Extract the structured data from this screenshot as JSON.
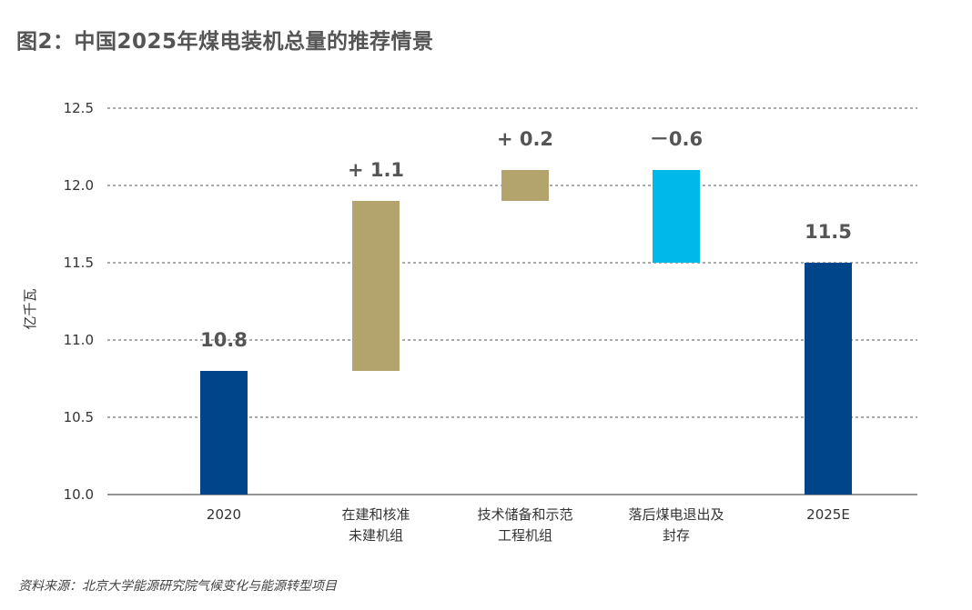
{
  "title": "图2：中国2025年煤电装机总量的推荐情景",
  "source": "资料来源：北京大学能源研究院气候变化与能源转型项目",
  "chart_data": {
    "type": "waterfall",
    "title": "图2：中国2025年煤电装机总量的推荐情景",
    "ylabel": "亿千瓦",
    "ylim": [
      10.0,
      12.5
    ],
    "yticks": [
      10.0,
      10.5,
      11.0,
      11.5,
      12.0,
      12.5
    ],
    "ytick_labels": [
      "10.0",
      "10.5",
      "11.0",
      "11.5",
      "12.0",
      "12.5"
    ],
    "grid": true,
    "categories": [
      [
        "2020"
      ],
      [
        "在建和核准",
        "未建机组"
      ],
      [
        "技术储备和示范",
        "工程机组"
      ],
      [
        "落后煤电退出及",
        "封存"
      ],
      [
        "2025E"
      ]
    ],
    "bars": [
      {
        "kind": "total",
        "start": 10.0,
        "end": 10.8,
        "label": "10.8",
        "color": "#00458a"
      },
      {
        "kind": "increase",
        "start": 10.8,
        "end": 11.9,
        "label": "+ 1.1",
        "color": "#b3a46e"
      },
      {
        "kind": "increase",
        "start": 11.9,
        "end": 12.1,
        "label": "+ 0.2",
        "color": "#b3a46e"
      },
      {
        "kind": "decrease",
        "start": 12.1,
        "end": 11.5,
        "label": "－0.6",
        "color": "#00b8ea"
      },
      {
        "kind": "total",
        "start": 10.0,
        "end": 11.5,
        "label": "11.5",
        "color": "#00458a"
      }
    ]
  },
  "colors": {
    "total": "#00458a",
    "increase": "#b3a46e",
    "decrease": "#00b8ea",
    "grid": "#555555"
  }
}
